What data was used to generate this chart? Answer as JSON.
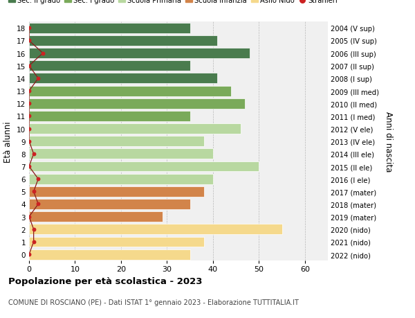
{
  "ages": [
    18,
    17,
    16,
    15,
    14,
    13,
    12,
    11,
    10,
    9,
    8,
    7,
    6,
    5,
    4,
    3,
    2,
    1,
    0
  ],
  "years": [
    "2004 (V sup)",
    "2005 (IV sup)",
    "2006 (III sup)",
    "2007 (II sup)",
    "2008 (I sup)",
    "2009 (III med)",
    "2010 (II med)",
    "2011 (I med)",
    "2012 (V ele)",
    "2013 (IV ele)",
    "2014 (III ele)",
    "2015 (II ele)",
    "2016 (I ele)",
    "2017 (mater)",
    "2018 (mater)",
    "2019 (mater)",
    "2020 (nido)",
    "2021 (nido)",
    "2022 (nido)"
  ],
  "values": [
    35,
    41,
    48,
    35,
    41,
    44,
    47,
    35,
    46,
    38,
    40,
    50,
    40,
    38,
    35,
    29,
    55,
    38,
    35
  ],
  "stranieri": [
    0,
    0,
    3,
    0,
    2,
    0,
    0,
    0,
    0,
    0,
    1,
    0,
    2,
    1,
    2,
    0,
    1,
    1,
    0
  ],
  "colors": [
    "#4a7c4e",
    "#4a7c4e",
    "#4a7c4e",
    "#4a7c4e",
    "#4a7c4e",
    "#7aaa5a",
    "#7aaa5a",
    "#7aaa5a",
    "#b8d8a0",
    "#b8d8a0",
    "#b8d8a0",
    "#b8d8a0",
    "#b8d8a0",
    "#d2844a",
    "#d2844a",
    "#d2844a",
    "#f5d98c",
    "#f5d98c",
    "#f5d98c"
  ],
  "legend_labels": [
    "Sec. II grado",
    "Sec. I grado",
    "Scuola Primaria",
    "Scuola Infanzia",
    "Asilo Nido",
    "Stranieri"
  ],
  "legend_colors": [
    "#4a7c4e",
    "#7aaa5a",
    "#b8d8a0",
    "#d2844a",
    "#f5d98c",
    "#cc2222"
  ],
  "title": "Popolazione per età scolastica - 2023",
  "subtitle": "COMUNE DI ROSCIANO (PE) - Dati ISTAT 1° gennaio 2023 - Elaborazione TUTTITALIA.IT",
  "ylabel_left": "Età alunni",
  "ylabel_right": "Anni di nascita",
  "xlim": [
    0,
    65
  ],
  "xticks": [
    0,
    10,
    20,
    30,
    40,
    50,
    60
  ],
  "stranieri_color": "#cc2222",
  "stranieri_line_color": "#8b1a1a",
  "bg_color": "#ffffff",
  "bar_bg_color": "#f0f0f0"
}
